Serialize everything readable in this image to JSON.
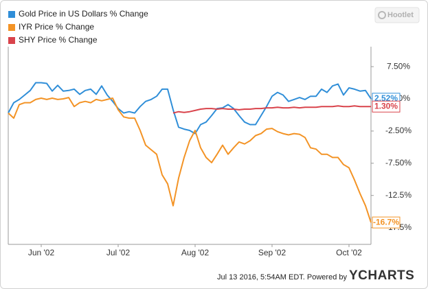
{
  "chart_data": {
    "type": "line",
    "watermark": "Hootlet",
    "footer": "Jul 13 2016, 5:54AM EDT.  Powered by",
    "footer_brand": "YCHARTS",
    "categories": [
      null,
      null,
      null,
      null,
      null,
      null,
      "Jun '02",
      null,
      null,
      null,
      null,
      null,
      null,
      null,
      null,
      null,
      null,
      null,
      null,
      null,
      "Jul '02",
      null,
      null,
      null,
      null,
      null,
      null,
      null,
      null,
      null,
      null,
      null,
      null,
      null,
      "Aug '02",
      null,
      null,
      null,
      null,
      null,
      null,
      null,
      null,
      null,
      null,
      null,
      null,
      null,
      "Sep '02",
      null,
      null,
      null,
      null,
      null,
      null,
      null,
      null,
      null,
      null,
      null,
      null,
      null,
      "Oct '02",
      null,
      null,
      null,
      null
    ],
    "ylim": [
      -20.1,
      10.6
    ],
    "yticks": [
      {
        "value": 7.5,
        "label": "7.50%"
      },
      {
        "value": 2.5,
        "label": "2.50%"
      },
      {
        "value": -2.5,
        "label": "-2.50%"
      },
      {
        "value": -7.5,
        "label": "-7.50%"
      },
      {
        "value": -12.5,
        "label": "-12.5%"
      },
      {
        "value": -17.5,
        "label": "-17.5%"
      }
    ],
    "grid": false,
    "legend": "top-left",
    "series": [
      {
        "name": "Gold Price in US Dollars % Change",
        "color": "#2f8ed8",
        "values": [
          0.3,
          1.9,
          2.4,
          3.1,
          3.8,
          5.0,
          5.0,
          4.9,
          3.7,
          4.6,
          3.7,
          3.8,
          4.0,
          3.2,
          3.8,
          4.0,
          3.2,
          4.5,
          3.1,
          2.1,
          1.0,
          0.3,
          0.5,
          0.3,
          1.3,
          2.1,
          2.4,
          2.9,
          4.0,
          4.0,
          0.8,
          -1.9,
          -2.2,
          -2.4,
          -2.9,
          -1.5,
          -1.1,
          -0.1,
          1.0,
          1.1,
          1.6,
          1.0,
          -0.1,
          -1.1,
          -1.5,
          -1.5,
          -0.1,
          1.3,
          2.9,
          3.5,
          3.1,
          2.1,
          2.4,
          2.7,
          2.4,
          2.9,
          2.9,
          4.0,
          3.5,
          4.5,
          4.8,
          3.1,
          4.2,
          4.0,
          3.7,
          3.8,
          2.52
        ],
        "value_labels": [
          null,
          null,
          null,
          null,
          null,
          null,
          null,
          null,
          null,
          null,
          null,
          null,
          null,
          null,
          null,
          null,
          null,
          null,
          null,
          null,
          null,
          null,
          null,
          null,
          null,
          null,
          null,
          null,
          null,
          null,
          null,
          null,
          null,
          null,
          null,
          null,
          null,
          null,
          null,
          null,
          null,
          null,
          null,
          null,
          null,
          null,
          null,
          null,
          null,
          null,
          null,
          null,
          null,
          null,
          null,
          null,
          null,
          null,
          null,
          null,
          null,
          null,
          null,
          null,
          null,
          null,
          "2.52%"
        ]
      },
      {
        "name": "IYR Price % Change",
        "color": "#f39325",
        "values": [
          0.3,
          -0.5,
          1.6,
          1.9,
          1.9,
          2.4,
          2.6,
          2.4,
          2.6,
          2.4,
          2.5,
          2.7,
          1.3,
          1.9,
          2.1,
          1.9,
          2.4,
          2.2,
          2.4,
          2.6,
          0.8,
          -0.3,
          -0.5,
          -0.5,
          -2.4,
          -4.7,
          -5.4,
          -6.1,
          -9.3,
          -10.7,
          -14.1,
          -9.8,
          -6.6,
          -4.0,
          -2.4,
          -5.1,
          -6.6,
          -7.4,
          -6.1,
          -4.7,
          -6.1,
          -5.1,
          -4.2,
          -4.5,
          -4.0,
          -3.2,
          -2.9,
          -2.2,
          -2.1,
          -2.6,
          -2.9,
          -3.1,
          -2.9,
          -3.0,
          -3.5,
          -5.1,
          -5.3,
          -6.1,
          -6.1,
          -6.6,
          -6.6,
          -7.7,
          -8.2,
          -10.1,
          -12.2,
          -14.1,
          -16.7
        ],
        "value_labels": [
          null,
          null,
          null,
          null,
          null,
          null,
          null,
          null,
          null,
          null,
          null,
          null,
          null,
          null,
          null,
          null,
          null,
          null,
          null,
          null,
          null,
          null,
          null,
          null,
          null,
          null,
          null,
          null,
          null,
          null,
          null,
          null,
          null,
          null,
          null,
          null,
          null,
          null,
          null,
          null,
          null,
          null,
          null,
          null,
          null,
          null,
          null,
          null,
          null,
          null,
          null,
          null,
          null,
          null,
          null,
          null,
          null,
          null,
          null,
          null,
          null,
          null,
          null,
          null,
          null,
          null,
          "-16.7%"
        ]
      },
      {
        "name": "SHY Price % Change",
        "color": "#d9434b",
        "values": [
          null,
          null,
          null,
          null,
          null,
          null,
          null,
          null,
          null,
          null,
          null,
          null,
          null,
          null,
          null,
          null,
          null,
          null,
          null,
          null,
          null,
          null,
          null,
          null,
          null,
          null,
          null,
          null,
          null,
          null,
          0.3,
          0.5,
          0.4,
          0.5,
          0.7,
          0.9,
          1.0,
          1.0,
          0.9,
          1.0,
          0.9,
          0.9,
          0.8,
          0.9,
          0.9,
          1.0,
          1.0,
          1.1,
          1.1,
          1.2,
          1.1,
          1.1,
          1.2,
          1.1,
          1.2,
          1.2,
          1.2,
          1.3,
          1.3,
          1.3,
          1.4,
          1.3,
          1.3,
          1.4,
          1.3,
          1.3,
          1.3
        ],
        "value_labels": [
          null,
          null,
          null,
          null,
          null,
          null,
          null,
          null,
          null,
          null,
          null,
          null,
          null,
          null,
          null,
          null,
          null,
          null,
          null,
          null,
          null,
          null,
          null,
          null,
          null,
          null,
          null,
          null,
          null,
          null,
          null,
          null,
          null,
          null,
          null,
          null,
          null,
          null,
          null,
          null,
          null,
          null,
          null,
          null,
          null,
          null,
          null,
          null,
          null,
          null,
          null,
          null,
          null,
          null,
          null,
          null,
          null,
          null,
          null,
          null,
          null,
          null,
          null,
          null,
          null,
          null,
          "1.30%"
        ]
      }
    ]
  }
}
